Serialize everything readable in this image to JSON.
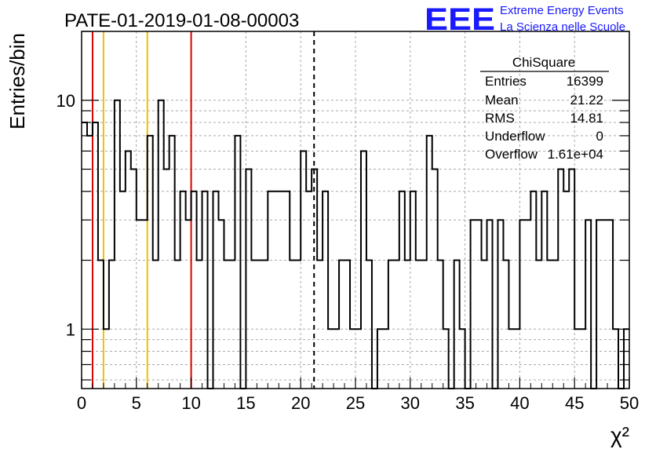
{
  "chart_data": {
    "type": "bar",
    "title": "PATE-01-2019-01-08-00003",
    "xlabel": "χ²",
    "ylabel": "Entries/bin",
    "xlim": [
      0,
      50
    ],
    "ylim": [
      0.55,
      20
    ],
    "y_scale": "log",
    "grid": true,
    "bin_width": 0.5,
    "x_ticks": [
      "0",
      "5",
      "10",
      "15",
      "20",
      "25",
      "30",
      "35",
      "40",
      "45",
      "50"
    ],
    "y_ticks": [
      "1",
      "10"
    ],
    "values": [
      8,
      7,
      8,
      2,
      1,
      2,
      10,
      4,
      6,
      5,
      3,
      3,
      7,
      2,
      10,
      5,
      7,
      2,
      4,
      3,
      4,
      2,
      4,
      0,
      4,
      3,
      2,
      2,
      7,
      0,
      5,
      2,
      2,
      2,
      4,
      4,
      4,
      4,
      2,
      2,
      6,
      4,
      5,
      2,
      4,
      1,
      1,
      2,
      2,
      1,
      1,
      6,
      2,
      0,
      1,
      1,
      2,
      2,
      4,
      2,
      4,
      2,
      2,
      7,
      5,
      2,
      1,
      0,
      2,
      1,
      0,
      3,
      3,
      2,
      3,
      0,
      3,
      2,
      1,
      1,
      3,
      3,
      4,
      2,
      4,
      2,
      2,
      5,
      4,
      5,
      1,
      1,
      3,
      0,
      3,
      3,
      3,
      1,
      0,
      1
    ],
    "vertical_lines": [
      {
        "x": 1,
        "color": "#dd0000",
        "style": "solid"
      },
      {
        "x": 2,
        "color": "#f0c000",
        "style": "solid"
      },
      {
        "x": 6,
        "color": "#f0c000",
        "style": "solid"
      },
      {
        "x": 10,
        "color": "#dd0000",
        "style": "solid"
      },
      {
        "x": 21.22,
        "color": "#000000",
        "style": "dashed"
      }
    ]
  },
  "stats": {
    "title": "ChiSquare",
    "rows": [
      {
        "label": "Entries",
        "value": "16399"
      },
      {
        "label": "Mean",
        "value": "21.22"
      },
      {
        "label": "RMS",
        "value": "14.81"
      },
      {
        "label": "Underflow",
        "value": "0"
      },
      {
        "label": "Overflow",
        "value": "1.61e+04"
      }
    ]
  },
  "logo": {
    "mark": "EEE",
    "line1": "Extreme Energy Events",
    "line2": "La Scienza nelle Scuole",
    "color": "#1a1aff"
  }
}
